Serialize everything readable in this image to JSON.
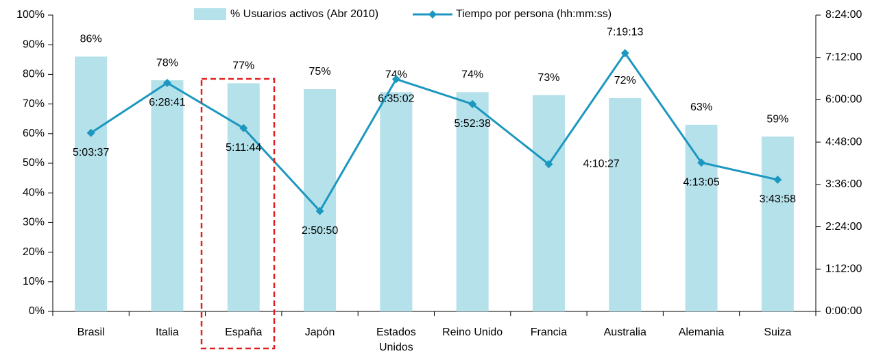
{
  "chart_data": {
    "type": "combo",
    "categories": [
      "Brasil",
      "Italia",
      "España",
      "Japón",
      "Estados Unidos",
      "Reino Unido",
      "Francia",
      "Australia",
      "Alemania",
      "Suiza"
    ],
    "series": [
      {
        "name": "% Usuarios activos (Abr 2010)",
        "type": "bar",
        "color": "#b4e1ea",
        "values": [
          86,
          78,
          77,
          75,
          74,
          74,
          73,
          72,
          63,
          59
        ],
        "value_labels": [
          "86%",
          "78%",
          "77%",
          "75%",
          "74%",
          "74%",
          "73%",
          "72%",
          "63%",
          "59%"
        ]
      },
      {
        "name": "Tiempo por persona (hh:mm:ss)",
        "type": "line",
        "axis": "y2",
        "color": "#1b97c0",
        "values": [
          18217,
          23321,
          18704,
          10250,
          23702,
          21158,
          15027,
          26353,
          15185,
          13438
        ],
        "value_labels": [
          "5:03:37",
          "6:28:41",
          "5:11:44",
          "2:50:50",
          "6:35:02",
          "5:52:38",
          "4:10:27",
          "7:19:13",
          "4:13:05",
          "3:43:58"
        ]
      }
    ],
    "ylim": [
      0,
      100
    ],
    "yticks": [
      {
        "value": 0,
        "label": "0%"
      },
      {
        "value": 10,
        "label": "10%"
      },
      {
        "value": 20,
        "label": "20%"
      },
      {
        "value": 30,
        "label": "30%"
      },
      {
        "value": 40,
        "label": "40%"
      },
      {
        "value": 50,
        "label": "50%"
      },
      {
        "value": 60,
        "label": "60%"
      },
      {
        "value": 70,
        "label": "70%"
      },
      {
        "value": 80,
        "label": "80%"
      },
      {
        "value": 90,
        "label": "90%"
      },
      {
        "value": 100,
        "label": "100%"
      }
    ],
    "y2lim": [
      0,
      30240
    ],
    "y2ticks": [
      {
        "value": 0,
        "label": "0:00:00"
      },
      {
        "value": 4320,
        "label": "1:12:00"
      },
      {
        "value": 8640,
        "label": "2:24:00"
      },
      {
        "value": 12960,
        "label": "3:36:00"
      },
      {
        "value": 17280,
        "label": "4:48:00"
      },
      {
        "value": 21600,
        "label": "6:00:00"
      },
      {
        "value": 25920,
        "label": "7:12:00"
      },
      {
        "value": 30240,
        "label": "8:24:00"
      }
    ],
    "grid": false,
    "legend": "top"
  }
}
